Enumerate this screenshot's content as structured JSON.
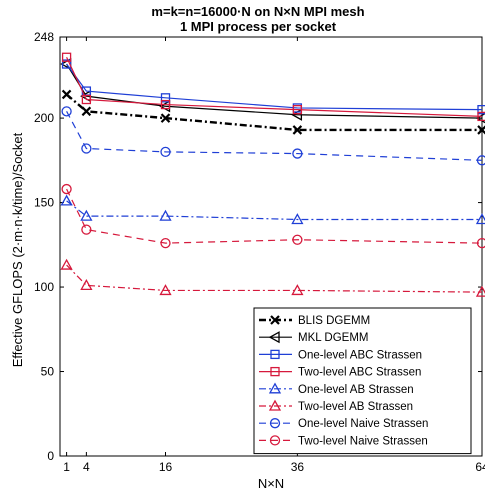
{
  "chart_data": {
    "type": "line",
    "title_lines": [
      "m=k=n=16000·N on N×N MPI mesh",
      "1 MPI process per socket"
    ],
    "xlabel": "N×N",
    "ylabel": "Effective GFLOPS (2·m·n·k/time)/Socket",
    "x": [
      1,
      4,
      16,
      36,
      64
    ],
    "xticks": [
      1,
      4,
      16,
      36,
      64
    ],
    "xlim": [
      0,
      64
    ],
    "yticks": [
      0,
      50,
      100,
      150,
      200,
      248
    ],
    "ylim": [
      0,
      248
    ],
    "grid": false,
    "legend_position": "bottom-right",
    "series": [
      {
        "name": "BLIS DGEMM",
        "color": "#000000",
        "dash": "7,3,2,3",
        "width": 2.4,
        "marker": "x",
        "values": [
          214,
          204,
          200,
          193,
          193
        ]
      },
      {
        "name": "MKL DGEMM",
        "color": "#000000",
        "dash": "",
        "width": 1.2,
        "marker": "triangle-left",
        "values": [
          232,
          213,
          207,
          202,
          200
        ]
      },
      {
        "name": "One-level ABC Strassen",
        "color": "#1f3fd6",
        "dash": "",
        "width": 1.2,
        "marker": "square",
        "values": [
          232,
          216,
          212,
          206,
          205
        ]
      },
      {
        "name": "Two-level ABC Strassen",
        "color": "#d6193c",
        "dash": "",
        "width": 1.2,
        "marker": "square",
        "values": [
          236,
          211,
          208,
          205,
          201
        ]
      },
      {
        "name": "One-level AB Strassen",
        "color": "#1f3fd6",
        "dash": "7,3,2,3",
        "width": 1.2,
        "marker": "triangle-up",
        "values": [
          151,
          142,
          142,
          140,
          140
        ]
      },
      {
        "name": "Two-level AB Strassen",
        "color": "#d6193c",
        "dash": "7,3,2,3",
        "width": 1.2,
        "marker": "triangle-up",
        "values": [
          113,
          101,
          98,
          98,
          97
        ]
      },
      {
        "name": "One-level Naive Strassen",
        "color": "#1f3fd6",
        "dash": "7,5",
        "width": 1.2,
        "marker": "circle",
        "values": [
          204,
          182,
          180,
          179,
          175
        ]
      },
      {
        "name": "Two-level Naive Strassen",
        "color": "#d6193c",
        "dash": "7,5",
        "width": 1.2,
        "marker": "circle",
        "values": [
          158,
          134,
          126,
          128,
          126
        ]
      }
    ]
  }
}
